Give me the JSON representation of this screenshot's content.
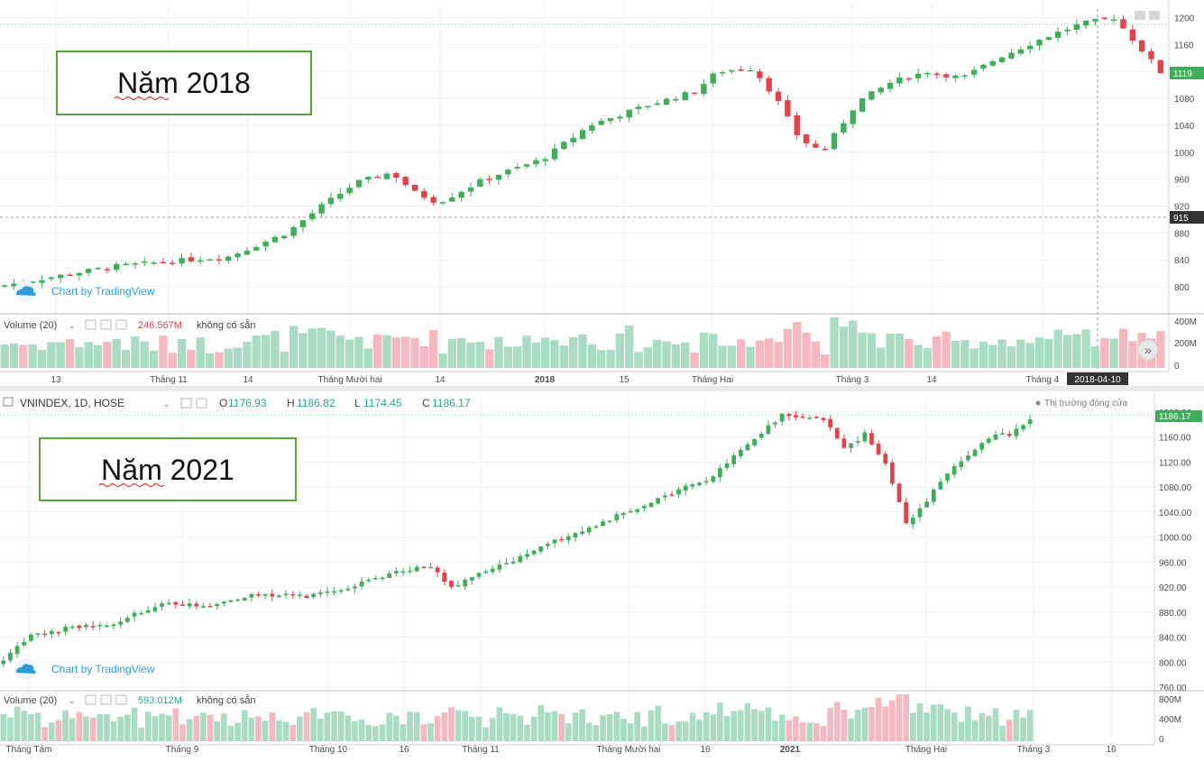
{
  "colors": {
    "up": "#26a69a",
    "up_body": "#3fae5a",
    "down": "#e0434b",
    "vol_up": "#a9dcc0",
    "vol_down": "#f5b8bf",
    "grid": "#eef2f6",
    "axis_text": "#4a4a4a",
    "box_border": "#5aa53b",
    "watermark": "#2e9bd6",
    "price_tag": "#3fae5a"
  },
  "charts": {
    "top": {
      "box_label": "Năm 2018",
      "watermark": "Chart by TradingView",
      "price_axis": [
        "1200",
        "1160",
        "1120",
        "1080",
        "1040",
        "1000",
        "960",
        "920",
        "880",
        "840",
        "800"
      ],
      "last_price_tag": "1119",
      "crosshair_price_tag": "915",
      "volume_label": "Volume (20)",
      "volume_value": "246.567M",
      "volume_status": "không có sẵn",
      "volume_axis": [
        "400M",
        "200M",
        "0"
      ],
      "time_axis": [
        "13",
        "Tháng 11",
        "14",
        "Tháng Mười hai",
        "14",
        "2018",
        "15",
        "Tháng Hai",
        "Tháng 3",
        "14",
        "Tháng 4"
      ],
      "crosshair_date": "2018-04-10",
      "scroll_button": "»"
    },
    "bottom": {
      "box_label": "Năm 2021",
      "symbol": "VNINDEX, 1D, HOSE",
      "ohlc": {
        "o_label": "O",
        "o": "1176.93",
        "h_label": "H",
        "h": "1186.82",
        "l_label": "L",
        "l": "1174.45",
        "c_label": "C",
        "c": "1186.17"
      },
      "market_status": "Thị trường đóng cửa",
      "watermark": "Chart by TradingView",
      "price_axis": [
        "1200.00",
        "1160.00",
        "1120.00",
        "1080.00",
        "1040.00",
        "1000.00",
        "960.00",
        "920.00",
        "880.00",
        "840.00",
        "800.00",
        "760.00"
      ],
      "last_price_tag": "1186.17",
      "volume_label": "Volume (20)",
      "volume_value": "593.012M",
      "volume_status": "không có sẵn",
      "volume_axis": [
        "800M",
        "400M",
        "0"
      ],
      "time_axis": [
        "Tháng Tám",
        "Tháng 9",
        "Tháng 10",
        "16",
        "Tháng 11",
        "Tháng Mười hai",
        "16",
        "2021",
        "Tháng Hai",
        "Tháng 3",
        "16"
      ]
    }
  },
  "chart_data": [
    {
      "type": "candlestick",
      "title": "Năm 2018",
      "ylim": [
        780,
        1210
      ],
      "x_range": [
        "2017-10",
        "2018-04"
      ],
      "series": [
        {
          "name": "VNINDEX",
          "close_path": [
            [
              0,
              800
            ],
            [
              0.05,
              815
            ],
            [
              0.1,
              830
            ],
            [
              0.15,
              838
            ],
            [
              0.2,
              845
            ],
            [
              0.25,
              880
            ],
            [
              0.28,
              920
            ],
            [
              0.31,
              955
            ],
            [
              0.34,
              970
            ],
            [
              0.36,
              940
            ],
            [
              0.38,
              925
            ],
            [
              0.42,
              960
            ],
            [
              0.47,
              990
            ],
            [
              0.51,
              1040
            ],
            [
              0.56,
              1070
            ],
            [
              0.6,
              1090
            ],
            [
              0.62,
              1120
            ],
            [
              0.65,
              1125
            ],
            [
              0.67,
              1080
            ],
            [
              0.69,
              1020
            ],
            [
              0.71,
              1000
            ],
            [
              0.74,
              1075
            ],
            [
              0.77,
              1105
            ],
            [
              0.8,
              1120
            ],
            [
              0.83,
              1110
            ],
            [
              0.86,
              1140
            ],
            [
              0.9,
              1170
            ],
            [
              0.93,
              1190
            ],
            [
              0.96,
              1200
            ],
            [
              0.98,
              1160
            ],
            [
              1.0,
              1119
            ]
          ]
        }
      ]
    },
    {
      "type": "candlestick",
      "title": "Năm 2021",
      "ylim": [
        760,
        1210
      ],
      "x_range": [
        "2020-08",
        "2021-03"
      ],
      "series": [
        {
          "name": "VNINDEX",
          "close_path": [
            [
              0,
              795
            ],
            [
              0.03,
              840
            ],
            [
              0.07,
              855
            ],
            [
              0.11,
              860
            ],
            [
              0.16,
              895
            ],
            [
              0.2,
              890
            ],
            [
              0.25,
              910
            ],
            [
              0.3,
              905
            ],
            [
              0.35,
              925
            ],
            [
              0.39,
              945
            ],
            [
              0.42,
              955
            ],
            [
              0.44,
              920
            ],
            [
              0.48,
              950
            ],
            [
              0.55,
              1000
            ],
            [
              0.61,
              1040
            ],
            [
              0.66,
              1075
            ],
            [
              0.69,
              1095
            ],
            [
              0.72,
              1140
            ],
            [
              0.76,
              1195
            ],
            [
              0.8,
              1190
            ],
            [
              0.82,
              1140
            ],
            [
              0.84,
              1165
            ],
            [
              0.86,
              1120
            ],
            [
              0.88,
              1020
            ],
            [
              0.9,
              1060
            ],
            [
              0.93,
              1120
            ],
            [
              0.96,
              1160
            ],
            [
              0.98,
              1165
            ],
            [
              1.0,
              1186
            ]
          ]
        }
      ]
    }
  ]
}
